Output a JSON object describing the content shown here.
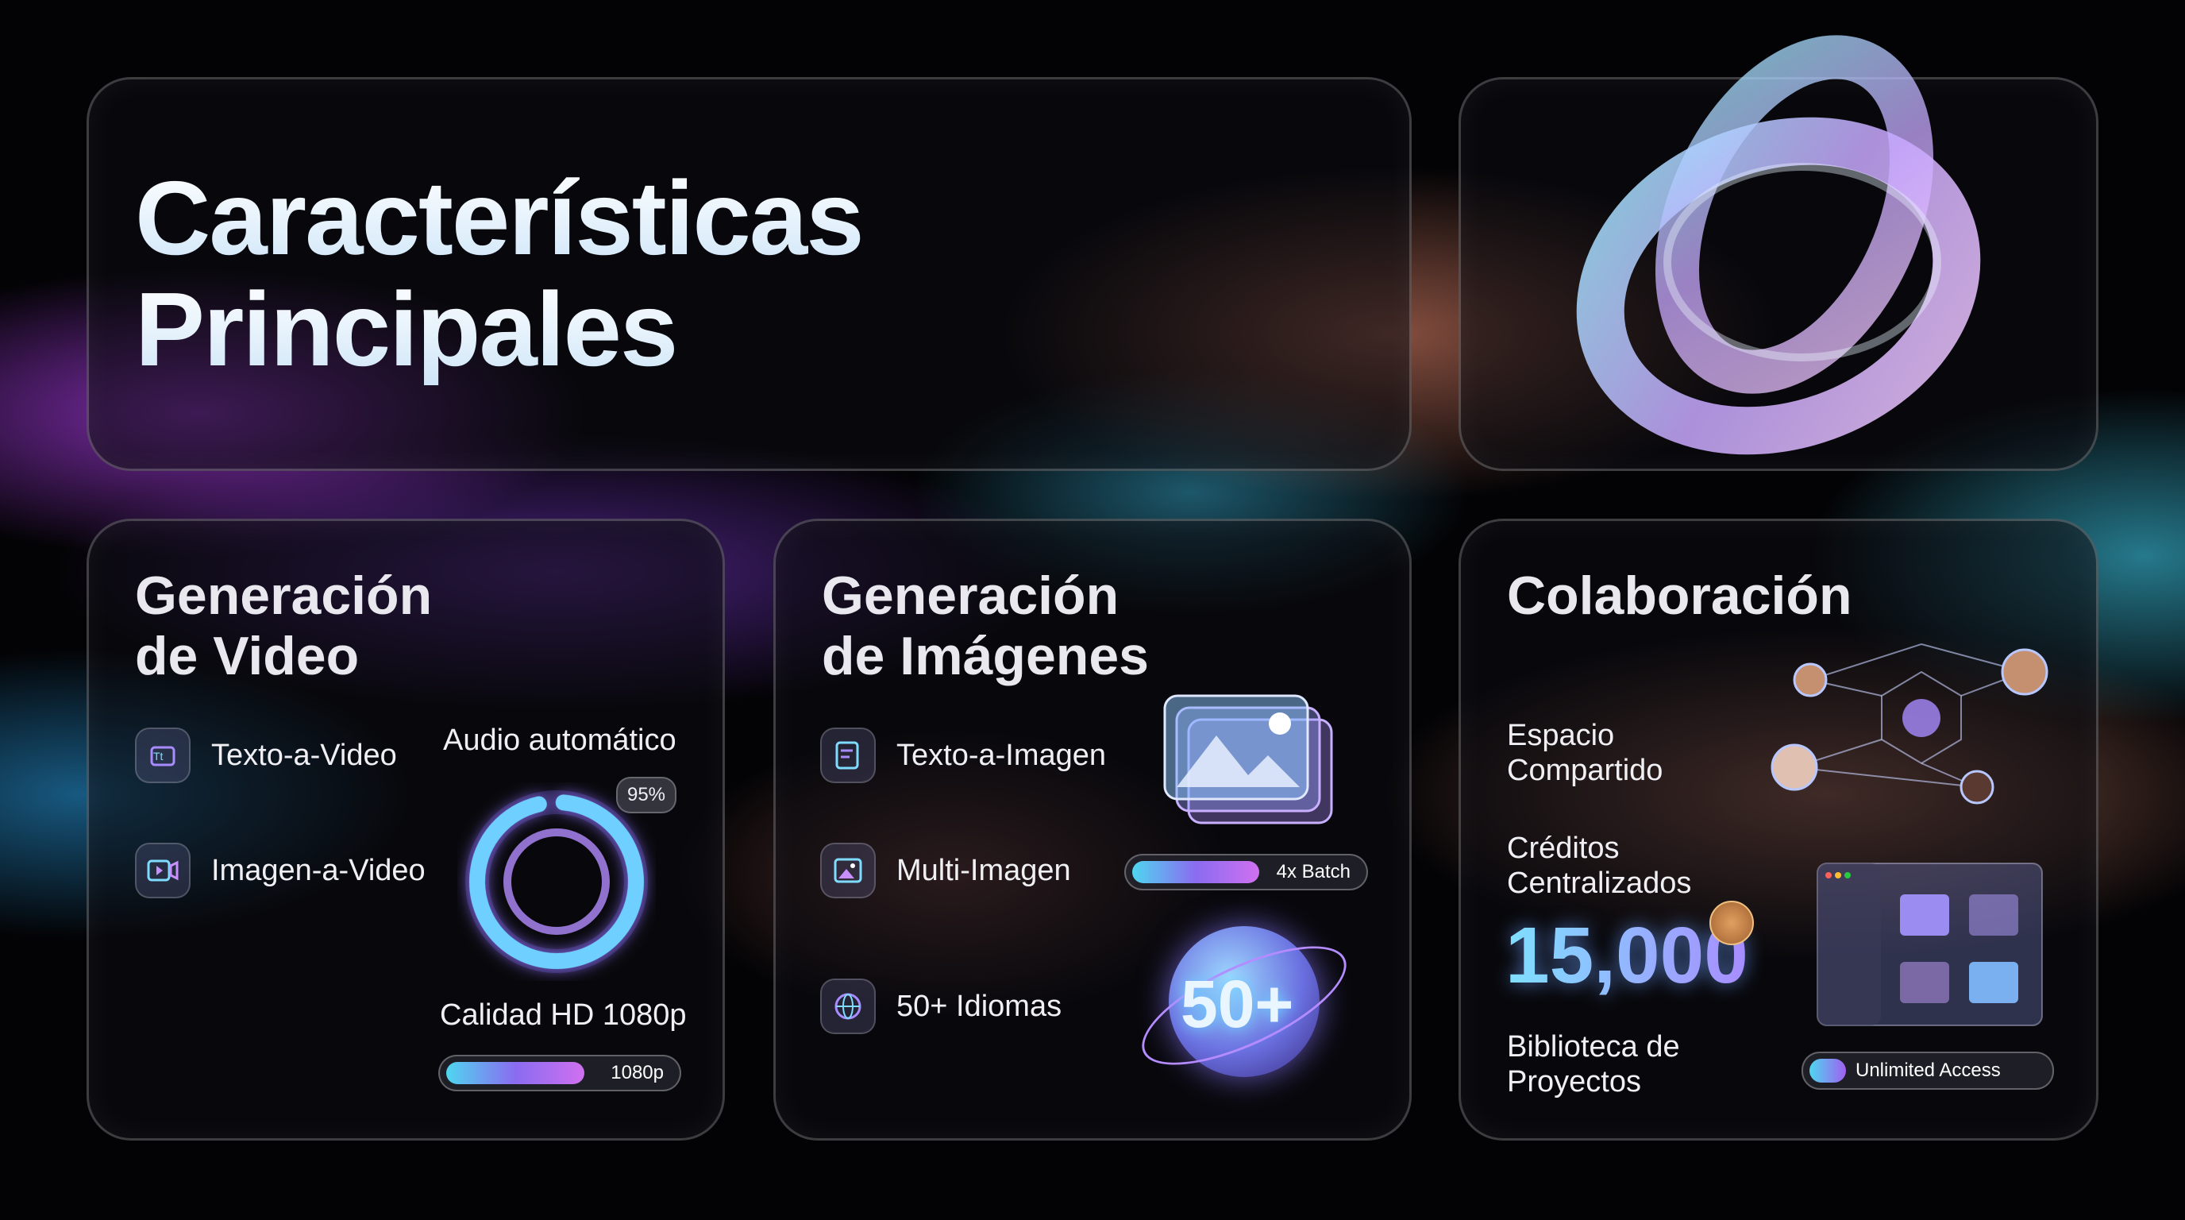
{
  "header": {
    "title_line1": "Características",
    "title_line2": "Principales"
  },
  "video": {
    "title_line1": "Generación",
    "title_line2": "de Video",
    "items": [
      {
        "label": "Texto-a-Video",
        "icon": "text-to-video-icon"
      },
      {
        "label": "Imagen-a-Video",
        "icon": "video-camera-icon"
      }
    ],
    "audio_label": "Audio automático",
    "audio_percent": "95%",
    "audio_fraction": 0.95,
    "quality_label": "Calidad HD 1080p",
    "quality_bar_label": "1080p",
    "quality_fill": 0.6
  },
  "images": {
    "title_line1": "Generación",
    "title_line2": "de Imágenes",
    "items": [
      {
        "label": "Texto-a-Imagen",
        "icon": "text-to-image-icon"
      },
      {
        "label": "Multi-Imagen",
        "icon": "image-icon"
      },
      {
        "label": "50+ Idiomas",
        "icon": "globe-icon"
      }
    ],
    "batch_label": "4x Batch",
    "batch_fill": 0.55,
    "globe_text": "50+"
  },
  "collab": {
    "title": "Colaboración",
    "shared_line1": "Espacio",
    "shared_line2": "Compartido",
    "credits_line1": "Créditos",
    "credits_line2": "Centralizados",
    "credits_value": "15,000",
    "library_line1": "Biblioteca de",
    "library_line2": "Proyectos",
    "access_label": "Unlimited Access"
  },
  "colors": {
    "cyan": "#4fd6f0",
    "purple": "#8a6cf0",
    "pink": "#d070f0",
    "orange": "#f0a070"
  }
}
